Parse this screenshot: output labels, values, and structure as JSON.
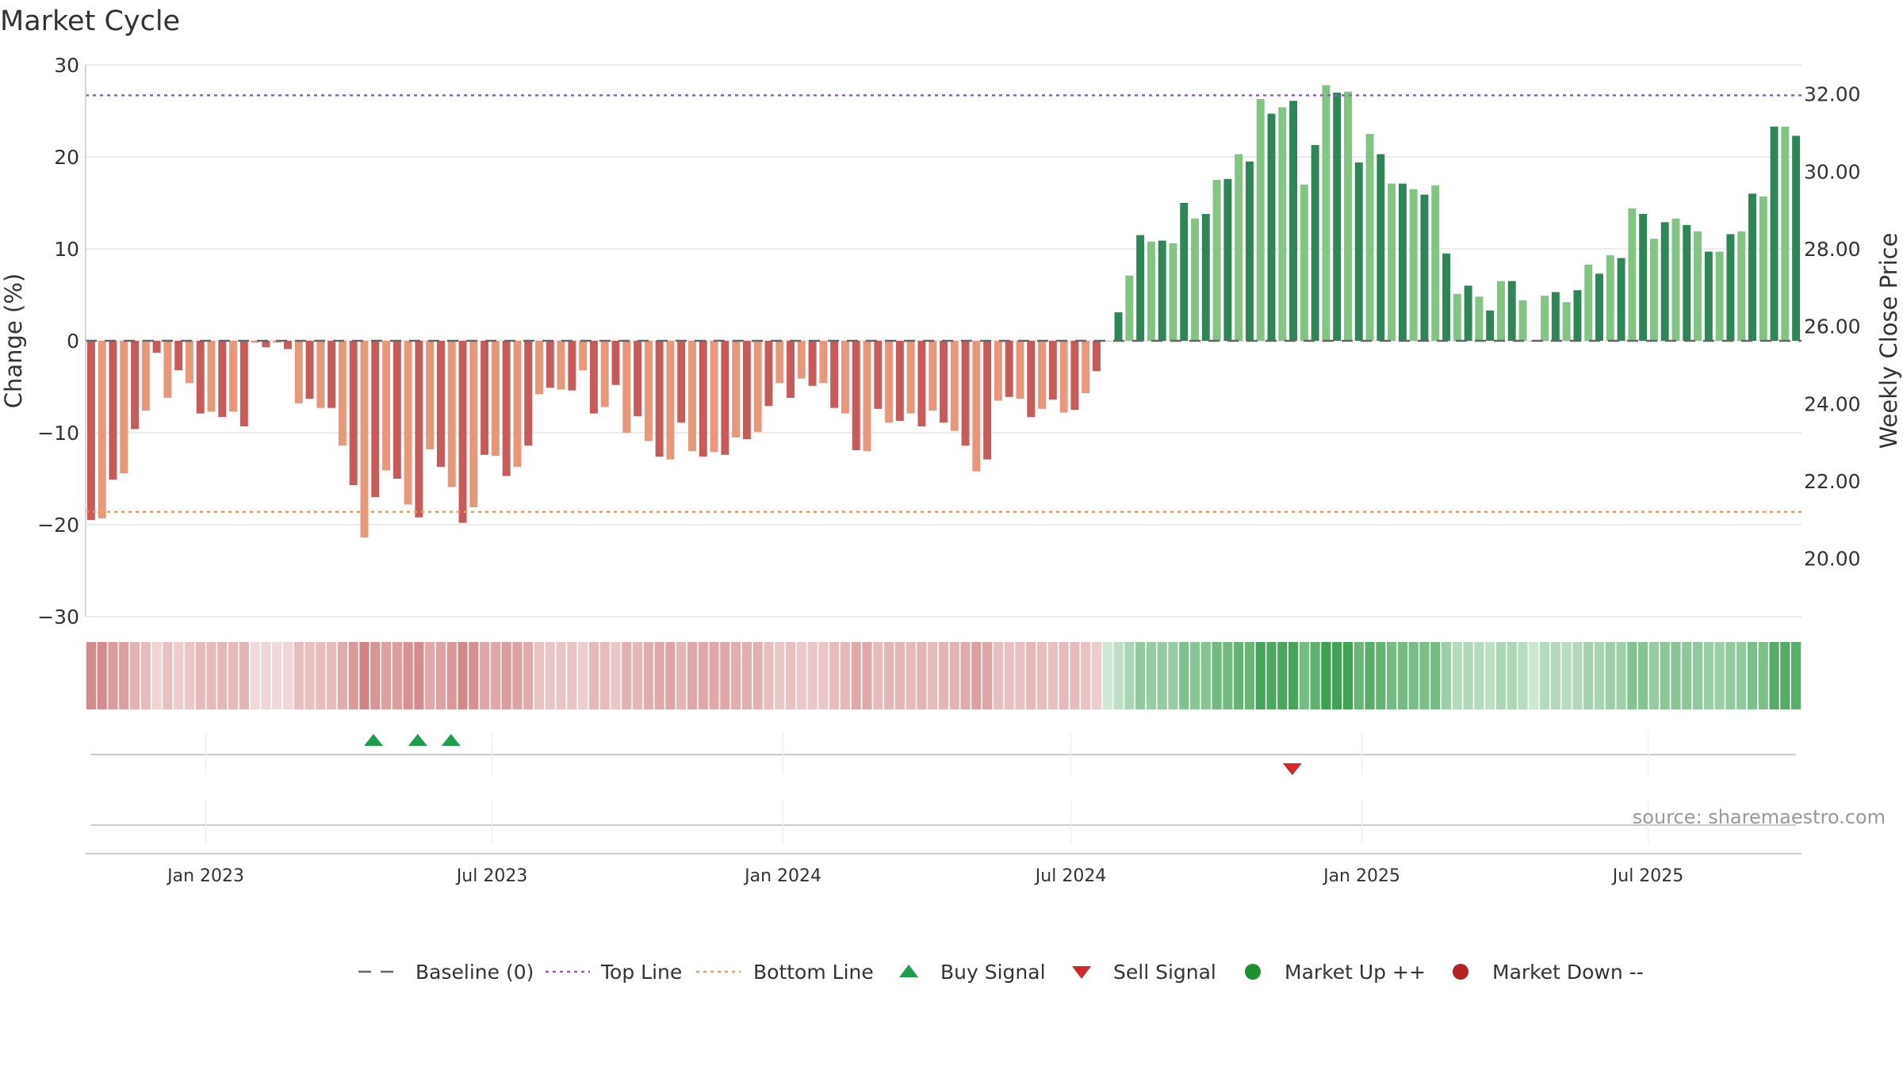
{
  "chart_data": {
    "type": "bar",
    "title": "Market Cycle",
    "ylabel": "Change (%)",
    "y2label": "Weekly Close Price",
    "ylim": [
      -30,
      30
    ],
    "y2lim": [
      18.5,
      32.75
    ],
    "yticks": [
      30,
      20,
      10,
      0,
      -10,
      -20,
      -30
    ],
    "ytick_labels": [
      "30",
      "20",
      "10",
      "0",
      "−10",
      "−20",
      "−30"
    ],
    "y2ticks": [
      32,
      30,
      28,
      26,
      24,
      22,
      20
    ],
    "y2tick_labels": [
      "32.00",
      "30.00",
      "28.00",
      "26.00",
      "24.00",
      "22.00",
      "20.00"
    ],
    "xlim": [
      "2022-10-17",
      "2025-10-06"
    ],
    "x_start": "2022-10-17",
    "x_step_days": 7,
    "xticks": [
      "2023-01-01",
      "2023-07-01",
      "2024-01-01",
      "2024-07-01",
      "2025-01-01",
      "2025-07-01"
    ],
    "xtick_labels": [
      "Jan 2023",
      "Jul 2023",
      "Jan 2024",
      "Jul 2024",
      "Jan 2025",
      "Jul 2025"
    ],
    "top_line": 26.7,
    "bottom_line": -18.6,
    "values": [
      -19.5,
      -19.3,
      -15.1,
      -14.4,
      -9.6,
      -7.6,
      -1.3,
      -6.2,
      -3.2,
      -4.6,
      -7.9,
      -7.7,
      -8.3,
      -7.7,
      -9.3,
      -0.2,
      -0.7,
      -0.2,
      -0.9,
      -6.8,
      -6.3,
      -7.3,
      -7.3,
      -11.4,
      -15.7,
      -21.4,
      -17.0,
      -14.1,
      -15.0,
      -17.8,
      -19.2,
      -11.8,
      -13.7,
      -15.9,
      -19.8,
      -18.1,
      -12.4,
      -12.5,
      -14.7,
      -13.7,
      -11.4,
      -5.8,
      -5.1,
      -5.3,
      -5.4,
      -3.2,
      -7.9,
      -7.2,
      -4.8,
      -10.0,
      -8.2,
      -10.9,
      -12.6,
      -12.9,
      -8.9,
      -12.0,
      -12.6,
      -12.1,
      -12.4,
      -10.5,
      -10.7,
      -9.9,
      -7.1,
      -4.6,
      -6.2,
      -4.1,
      -4.9,
      -4.6,
      -7.3,
      -7.9,
      -11.9,
      -12.0,
      -7.4,
      -8.9,
      -8.7,
      -7.9,
      -9.3,
      -7.6,
      -8.9,
      -9.8,
      -11.4,
      -14.2,
      -12.9,
      -6.5,
      -6.1,
      -6.3,
      -8.3,
      -7.4,
      -6.4,
      -7.8,
      -7.5,
      -5.7,
      -3.3,
      0,
      3.1,
      7.1,
      11.5,
      10.8,
      10.9,
      10.6,
      15.0,
      13.3,
      13.8,
      17.5,
      17.6,
      20.3,
      19.5,
      26.3,
      24.7,
      25.4,
      26.1,
      17.0,
      21.3,
      27.8,
      27.0,
      27.1,
      19.4,
      22.5,
      20.3,
      17.1,
      17.1,
      16.5,
      15.9,
      16.9,
      9.5,
      5.1,
      6.0,
      4.8,
      3.3,
      6.5,
      6.5,
      4.4,
      0,
      4.9,
      5.3,
      4.2,
      5.5,
      8.3,
      7.3,
      9.3,
      9.0,
      14.4,
      13.8,
      11.1,
      12.9,
      13.3,
      12.6,
      11.9,
      9.7,
      9.7,
      11.6,
      11.9,
      16.0,
      15.7,
      23.3,
      23.3,
      22.3
    ],
    "buy_signals": [
      "2023-04-17",
      "2023-05-15",
      "2023-06-05"
    ],
    "sell_signals": [
      "2024-11-18"
    ],
    "legend": [
      {
        "name": "Baseline (0)",
        "symbol": "dashed-gray"
      },
      {
        "name": "Top Line",
        "symbol": "dotted-purple"
      },
      {
        "name": "Bottom Line",
        "symbol": "dotted-orange"
      },
      {
        "name": "Buy Signal",
        "symbol": "triangle-up-green"
      },
      {
        "name": "Sell Signal",
        "symbol": "triangle-down-red"
      },
      {
        "name": "Market Up ++",
        "symbol": "circle-green"
      },
      {
        "name": "Market Down --",
        "symbol": "circle-red"
      }
    ],
    "legend_placement": "bottom-center",
    "grid": true,
    "source": "source: sharemaestro.com",
    "colors": {
      "neg_dark": "#c85a5a",
      "neg_light": "#e9977a",
      "pos_dark": "#2e8556",
      "pos_light": "#82c482",
      "top_line": "#9b59d0",
      "bottom_line": "#e8a05a",
      "baseline": "#666666",
      "buy": "#1e9e4a",
      "sell": "#d62728",
      "market_up": "#1f8f2f",
      "market_down": "#b22222",
      "grid": "#e6e6e6"
    }
  }
}
